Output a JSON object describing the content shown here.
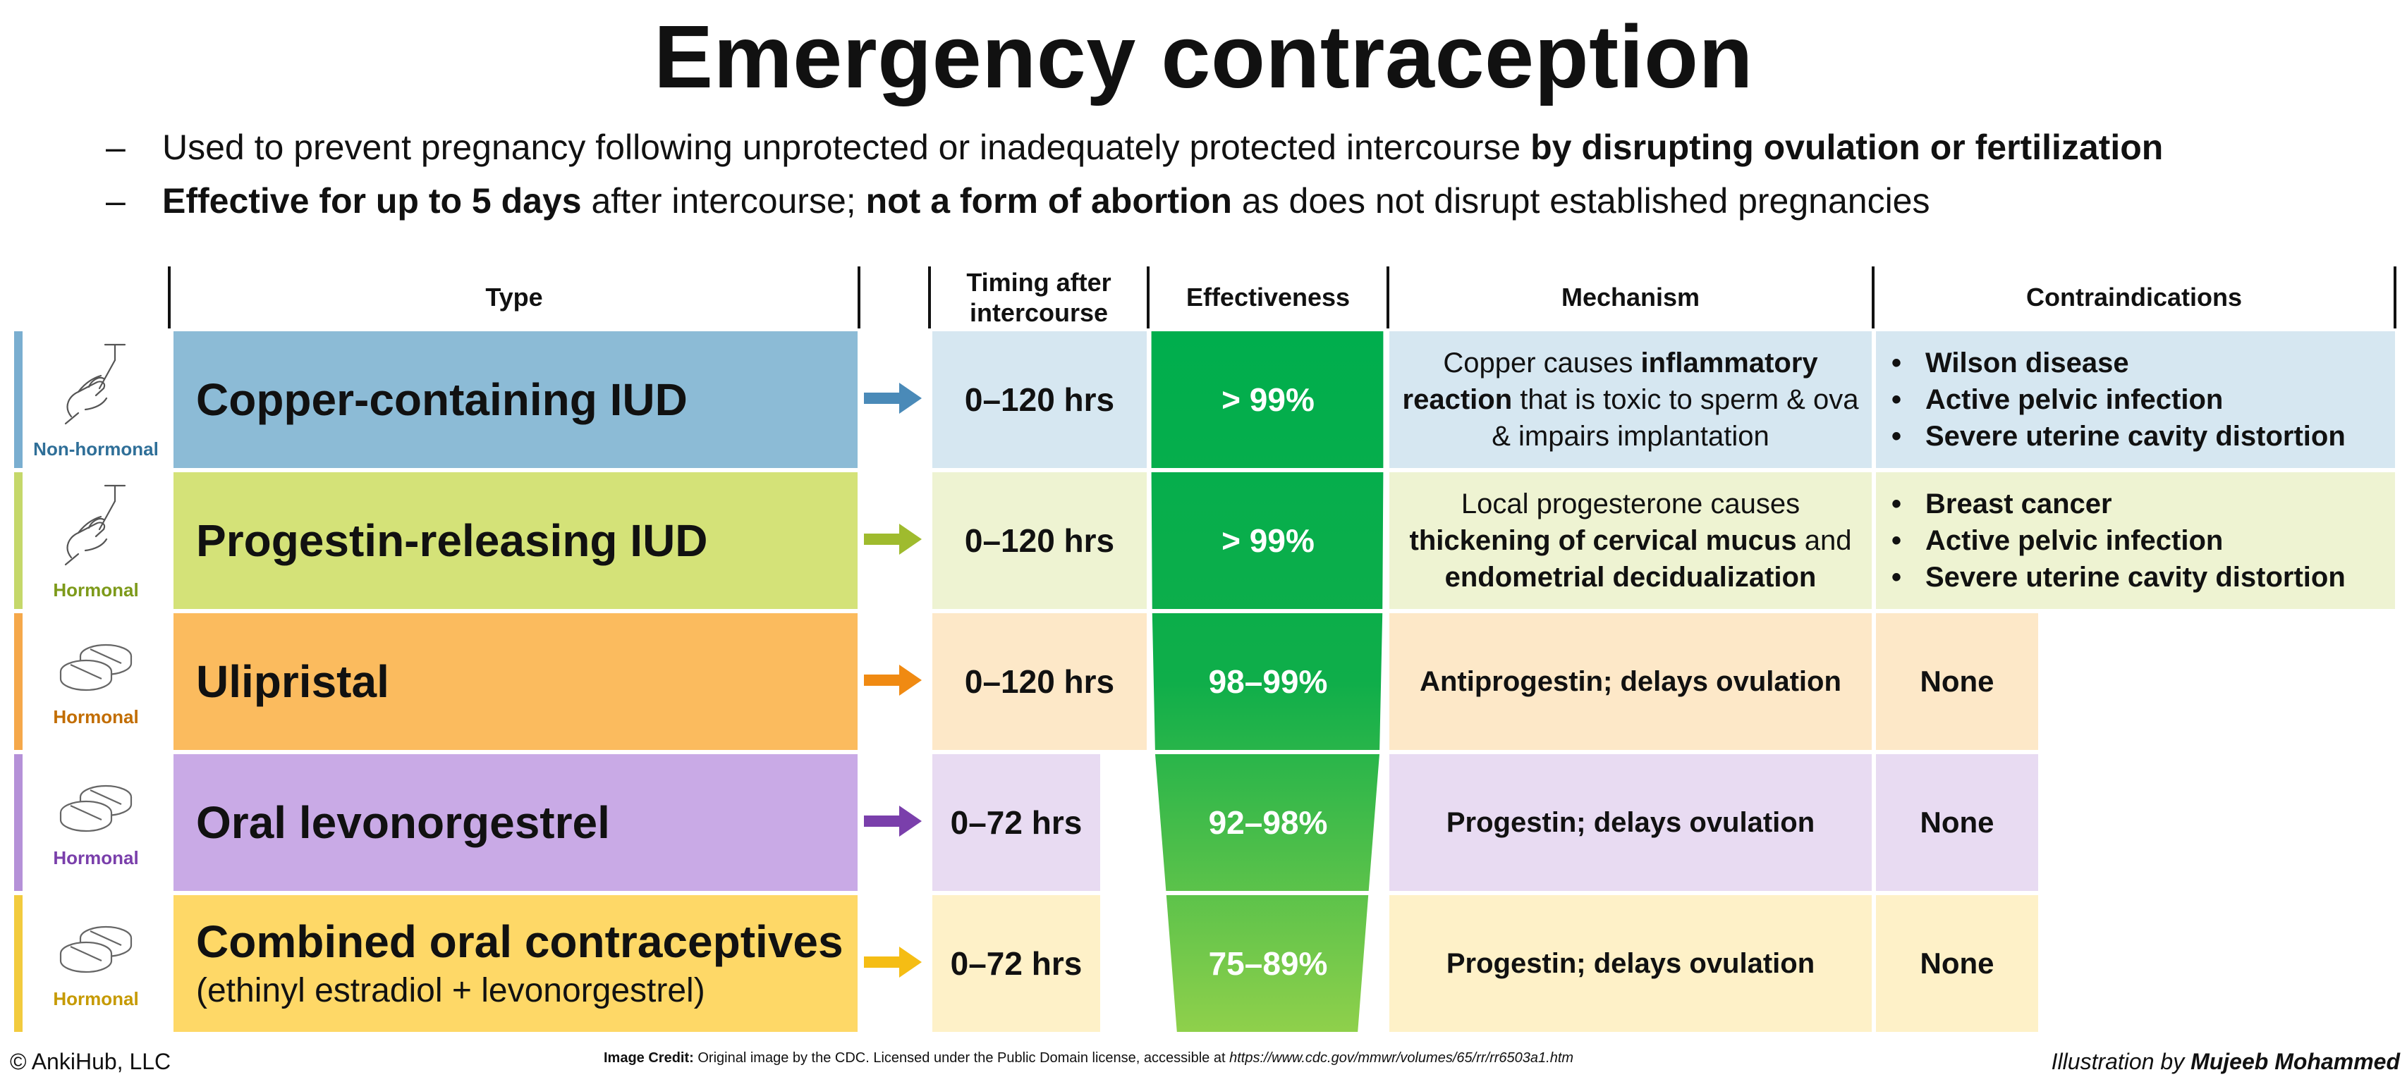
{
  "title": "Emergency contraception",
  "bullets": [
    {
      "dash": "–",
      "parts": [
        {
          "text": "Used to prevent pregnancy following unprotected or inadequately protected intercourse ",
          "bold": false
        },
        {
          "text": "by disrupting ovulation or fertilization",
          "bold": true
        }
      ]
    },
    {
      "dash": "–",
      "parts": [
        {
          "text": "Effective for up to 5 days",
          "bold": true
        },
        {
          "text": " after intercourse; ",
          "bold": false
        },
        {
          "text": "not a form of abortion",
          "bold": true
        },
        {
          "text": " as does not disrupt established pregnancies",
          "bold": false
        }
      ]
    }
  ],
  "headers": {
    "type": "Type",
    "timing_line1": "Timing after",
    "timing_line2": "intercourse",
    "effectiveness": "Effectiveness",
    "mechanism": "Mechanism",
    "contraindications": "Contraindications"
  },
  "rows": [
    {
      "category": "Non-hormonal",
      "icon": "iud-insertion-icon",
      "band_color": "#7aaed0",
      "category_color": "#2f6f98",
      "type_name": "Copper-containing IUD",
      "type_sub": "",
      "type_bg": "#8cbbd6",
      "arrow_color": "#4a8ab8",
      "timing": "0–120 hrs",
      "timing_bg": "#d6e7f1",
      "effectiveness": "> 99%",
      "effectiveness_pct": 99.5,
      "mechanism": [
        {
          "text": "Copper causes ",
          "bold": false
        },
        {
          "text": "inflammatory reaction",
          "bold": true
        },
        {
          "text": " that is toxic to sperm & ova & impairs implantation",
          "bold": false
        }
      ],
      "mechanism_bg": "#d6e7f1",
      "contraindications": [
        "Wilson disease",
        "Active pelvic infection",
        "Severe uterine cavity distortion"
      ],
      "contra_bg": "#d6e7f1"
    },
    {
      "category": "Hormonal",
      "icon": "iud-insertion-icon",
      "band_color": "#c5d86a",
      "category_color": "#7d9a1a",
      "type_name": "Progestin-releasing IUD",
      "type_sub": "",
      "type_bg": "#d4e278",
      "arrow_color": "#9fbb2e",
      "timing": "0–120 hrs",
      "timing_bg": "#eef3d2",
      "effectiveness": "> 99%",
      "effectiveness_pct": 99.5,
      "mechanism": [
        {
          "text": "Local progesterone causes ",
          "bold": false
        },
        {
          "text": "thickening of cervical mucus",
          "bold": true
        },
        {
          "text": " and ",
          "bold": false
        },
        {
          "text": "endometrial decidualization",
          "bold": true
        }
      ],
      "mechanism_bg": "#eef3d2",
      "contraindications": [
        "Breast cancer",
        "Active pelvic infection",
        "Severe uterine cavity distortion"
      ],
      "contra_bg": "#eef3d2"
    },
    {
      "category": "Hormonal",
      "icon": "pill-tablets-icon",
      "band_color": "#f5a84a",
      "category_color": "#c26d00",
      "type_name": "Ulipristal",
      "type_sub": "",
      "type_bg": "#fbbb5e",
      "arrow_color": "#f08a12",
      "timing": "0–120 hrs",
      "timing_bg": "#fde8c8",
      "effectiveness": "98–99%",
      "effectiveness_pct": 98.5,
      "mechanism": [
        {
          "text": "Antiprogestin; delays ovulation",
          "bold": true
        }
      ],
      "mechanism_bg": "#fde8c8",
      "contraindications": [
        "None"
      ],
      "contra_bg": "#fde8c8"
    },
    {
      "category": "Hormonal",
      "icon": "pill-tablets-icon",
      "band_color": "#b591d8",
      "category_color": "#7a3fab",
      "type_name": "Oral levonorgestrel",
      "type_sub": "",
      "type_bg": "#c9aae6",
      "arrow_color": "#7a3fab",
      "timing": "0–72 hrs",
      "timing_bg": "#e8dbf2",
      "effectiveness": "92–98%",
      "effectiveness_pct": 95,
      "mechanism": [
        {
          "text": "Progestin; delays ovulation",
          "bold": true
        }
      ],
      "mechanism_bg": "#e8dbf2",
      "contraindications": [
        "None"
      ],
      "contra_bg": "#e8dbf2"
    },
    {
      "category": "Hormonal",
      "icon": "pill-tablets-icon",
      "band_color": "#f2cb3e",
      "category_color": "#c69a00",
      "type_name": "Combined oral contraceptives",
      "type_sub": "(ethinyl estradiol + levonorgestrel)",
      "type_bg": "#fed867",
      "arrow_color": "#f5bd14",
      "timing": "0–72 hrs",
      "timing_bg": "#fef1c8",
      "effectiveness": "75–89%",
      "effectiveness_pct": 82,
      "mechanism": [
        {
          "text": "Progestin; delays ovulation",
          "bold": true
        }
      ],
      "mechanism_bg": "#fef1c8",
      "contraindications": [
        "None"
      ],
      "contra_bg": "#fef1c8"
    }
  ],
  "footer": {
    "copyright": "© AnkiHub, LLC",
    "credit_label": "Image Credit:",
    "credit_text": " Original image by the CDC. Licensed under the Public Domain license, accessible at ",
    "credit_url": "https://www.cdc.gov/mmwr/volumes/65/rr/rr6503a1.htm",
    "illustration_label": "Illustration by ",
    "illustration_author": "Mujeeb Mohammed"
  }
}
